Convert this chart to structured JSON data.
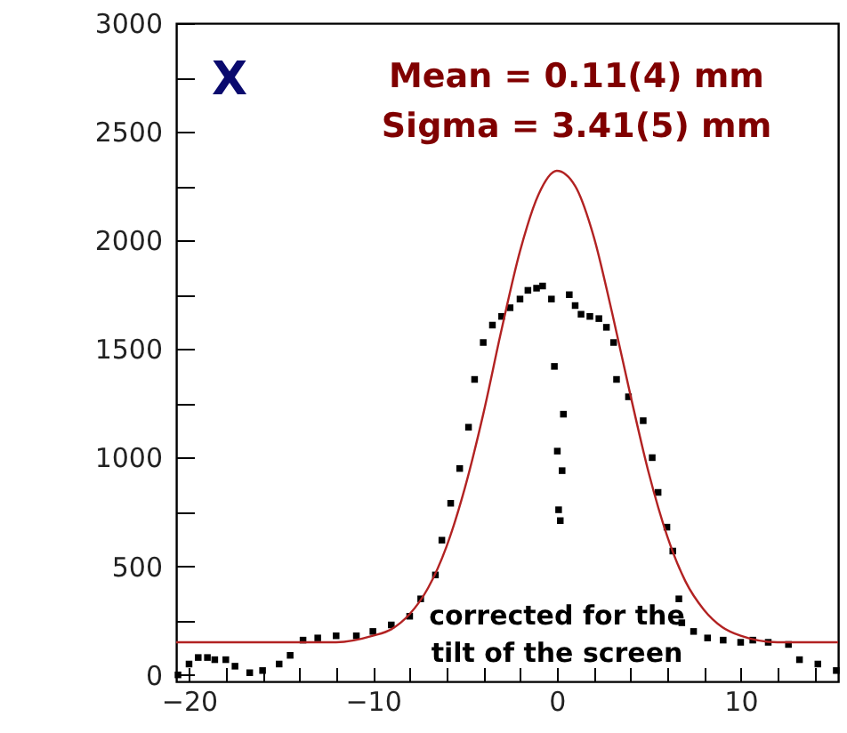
{
  "chart_data": {
    "type": "scatter",
    "grid": false,
    "xlim": [
      -20.7,
      15.3
    ],
    "ylim": [
      -30,
      3000
    ],
    "xticks": [
      {
        "value": -20,
        "label": "−20"
      },
      {
        "value": -18,
        "label": null
      },
      {
        "value": -16,
        "label": null
      },
      {
        "value": -14,
        "label": null
      },
      {
        "value": -12,
        "label": null
      },
      {
        "value": -10,
        "label": "−10"
      },
      {
        "value": -8,
        "label": null
      },
      {
        "value": -6,
        "label": null
      },
      {
        "value": -4,
        "label": null
      },
      {
        "value": -2,
        "label": null
      },
      0,
      {
        "value": 2,
        "label": null
      },
      {
        "value": 4,
        "label": null
      },
      {
        "value": 6,
        "label": null
      },
      {
        "value": 8,
        "label": null
      },
      10,
      {
        "value": 12,
        "label": null
      },
      {
        "value": 14,
        "label": null
      }
    ],
    "yticks": [
      0,
      {
        "value": 250,
        "label": null
      },
      500,
      {
        "value": 750,
        "label": null
      },
      1000,
      {
        "value": 1250,
        "label": null
      },
      1500,
      {
        "value": 1750,
        "label": null
      },
      2000,
      {
        "value": 2250,
        "label": null
      },
      2500,
      {
        "value": 2750,
        "label": null
      },
      3000
    ],
    "series": [
      {
        "marker": "square",
        "color": "#000000",
        "x": [
          -20.6,
          -20.0,
          -19.5,
          -19.0,
          -18.6,
          -18.0,
          -17.5,
          -16.7,
          -16.0,
          -15.1,
          -14.5,
          -13.8,
          -13.0,
          -12.0,
          -10.9,
          -10.0,
          -9.0,
          -8.0,
          -7.4,
          -6.6,
          -6.25,
          -5.77,
          -5.28,
          -4.8,
          -4.47,
          -4.0,
          -3.5,
          -3.0,
          -2.54,
          -2.0,
          -1.57,
          -1.1,
          -0.77,
          -0.29,
          -0.13,
          0.36,
          0.03,
          0.29,
          0.1,
          0.19,
          0.68,
          1.0,
          1.32,
          1.8,
          2.29,
          2.7,
          3.09,
          3.25,
          3.9,
          4.7,
          5.19,
          5.51,
          5.99,
          6.31,
          6.64,
          6.8,
          7.44,
          8.2,
          9.05,
          10.0,
          10.66,
          11.5,
          12.6,
          13.2,
          14.2,
          15.2
        ],
        "values": [
          0,
          50,
          80,
          80,
          70,
          70,
          40,
          10,
          20,
          50,
          90,
          160,
          170,
          180,
          180,
          200,
          230,
          270,
          350,
          460,
          620,
          790,
          950,
          1140,
          1360,
          1530,
          1610,
          1650,
          1690,
          1730,
          1770,
          1780,
          1790,
          1730,
          1420,
          1200,
          1030,
          940,
          760,
          710,
          1750,
          1700,
          1660,
          1650,
          1640,
          1600,
          1530,
          1360,
          1280,
          1170,
          1000,
          840,
          680,
          570,
          350,
          240,
          200,
          170,
          160,
          150,
          160,
          150,
          140,
          70,
          50,
          20
        ]
      },
      {
        "type": "line",
        "color": "#b22222",
        "x": [
          -20.7,
          -12,
          -10,
          -9,
          -8,
          -7,
          -6,
          -5,
          -4,
          -3,
          -2,
          -1,
          0,
          1,
          2,
          3,
          4,
          5,
          6,
          7,
          8,
          9,
          10,
          12,
          15.3
        ],
        "values": [
          150,
          150,
          180,
          210,
          280,
          400,
          590,
          860,
          1200,
          1590,
          1950,
          2210,
          2320,
          2250,
          2020,
          1670,
          1290,
          930,
          640,
          430,
          300,
          220,
          180,
          150,
          150
        ]
      }
    ],
    "annotations": [
      "X",
      "Mean = 0.11(4) mm",
      "Sigma = 3.41(5) mm",
      "corrected for the\ntilt of the screen"
    ]
  }
}
